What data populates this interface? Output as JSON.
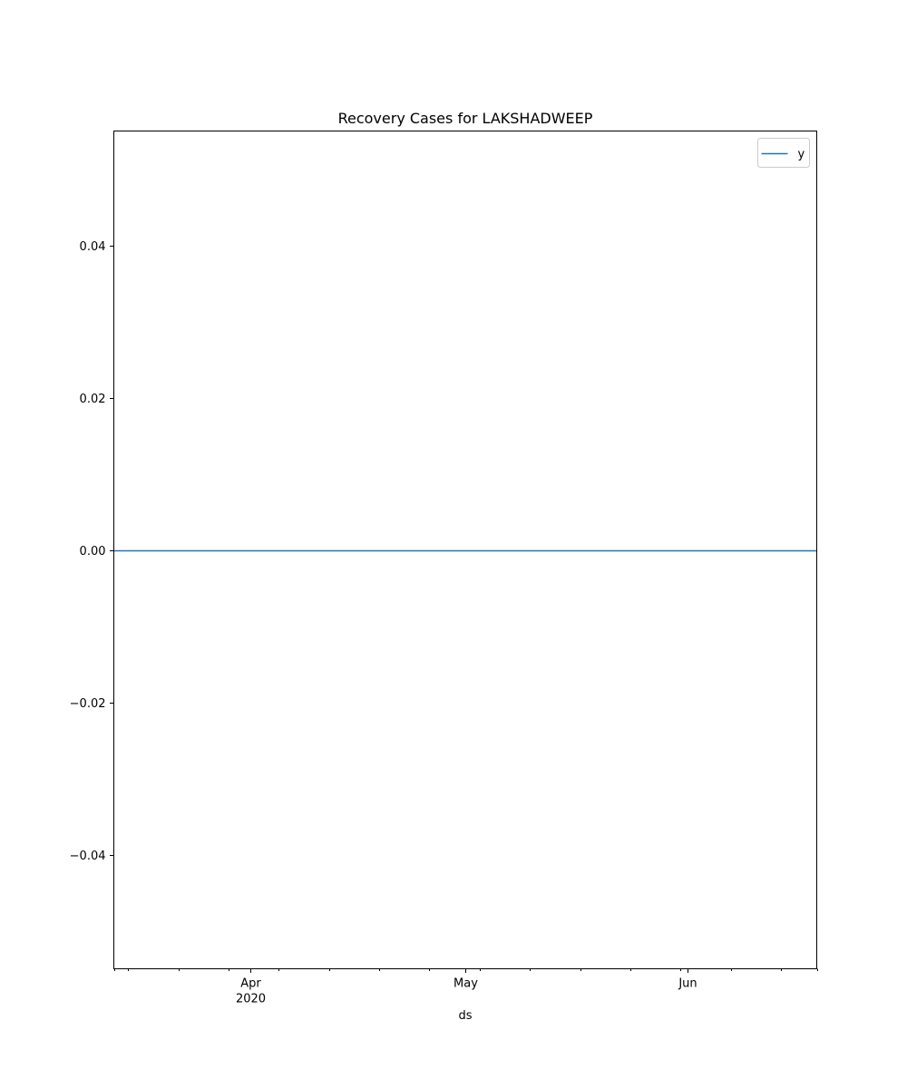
{
  "chart_data": {
    "type": "line",
    "title": "Recovery Cases for LAKSHADWEEP",
    "xlabel": "ds",
    "ylabel": "",
    "x_range": [
      "2020-03-13",
      "2020-06-19"
    ],
    "ylim": [
      -0.055,
      0.055
    ],
    "y_ticks": [
      {
        "value": 0.04,
        "label": "0.04"
      },
      {
        "value": 0.02,
        "label": "0.02"
      },
      {
        "value": 0.0,
        "label": "0.00"
      },
      {
        "value": -0.02,
        "label": "−0.02"
      },
      {
        "value": -0.04,
        "label": "−0.04"
      }
    ],
    "x_major_ticks": [
      {
        "date": "2020-04-01",
        "label": "Apr",
        "sublabel": "2020"
      },
      {
        "date": "2020-05-01",
        "label": "May",
        "sublabel": ""
      },
      {
        "date": "2020-06-01",
        "label": "Jun",
        "sublabel": ""
      }
    ],
    "x_minor_ticks": [
      "2020-03-13",
      "2020-03-15",
      "2020-03-22",
      "2020-03-29",
      "2020-04-05",
      "2020-04-12",
      "2020-04-19",
      "2020-04-26",
      "2020-05-03",
      "2020-05-10",
      "2020-05-17",
      "2020-05-24",
      "2020-05-31",
      "2020-06-07",
      "2020-06-14",
      "2020-06-19"
    ],
    "series": [
      {
        "name": "y",
        "color": "#1f77b4",
        "x": [
          "2020-03-13",
          "2020-06-19"
        ],
        "values": [
          0,
          0
        ]
      }
    ],
    "legend": {
      "position": "top-right"
    },
    "grid": false
  }
}
